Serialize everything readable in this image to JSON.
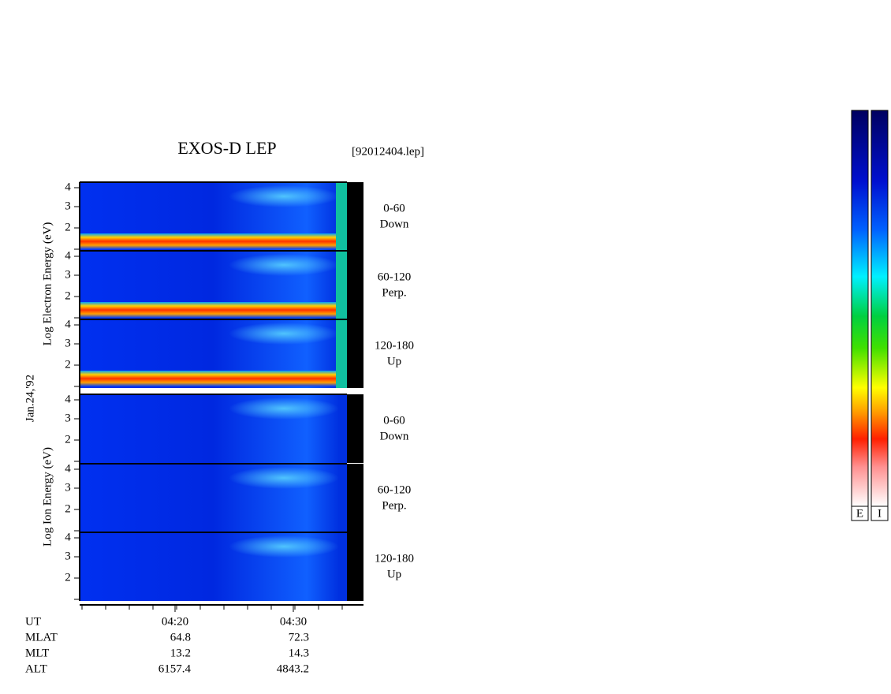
{
  "title": "EXOS-D LEP",
  "file": "[92012404.lep]",
  "date": "Jan.24,'92",
  "electron_label": "Log  Electron  Energy (eV)",
  "ion_label": "Log  Ion  Energy (eV)",
  "energy_ticks": [
    2,
    3,
    4
  ],
  "panels": [
    {
      "range": "0-60",
      "direction": "Down"
    },
    {
      "range": "60-120",
      "direction": "Perp."
    },
    {
      "range": "120-180",
      "direction": "Up"
    },
    {
      "range": "0-60",
      "direction": "Down"
    },
    {
      "range": "60-120",
      "direction": "Perp."
    },
    {
      "range": "120-180",
      "direction": "Up"
    }
  ],
  "time_ticks": [
    "04:20",
    "04:30"
  ],
  "rows": [
    {
      "label": "UT"
    },
    {
      "label": "MLAT",
      "values": [
        64.8,
        72.3
      ]
    },
    {
      "label": "MLT",
      "values": [
        13.2,
        14.3
      ]
    },
    {
      "label": "ALT",
      "values": [
        6157.4,
        4843.2
      ]
    }
  ],
  "colorbars": [
    "E",
    "I"
  ]
}
